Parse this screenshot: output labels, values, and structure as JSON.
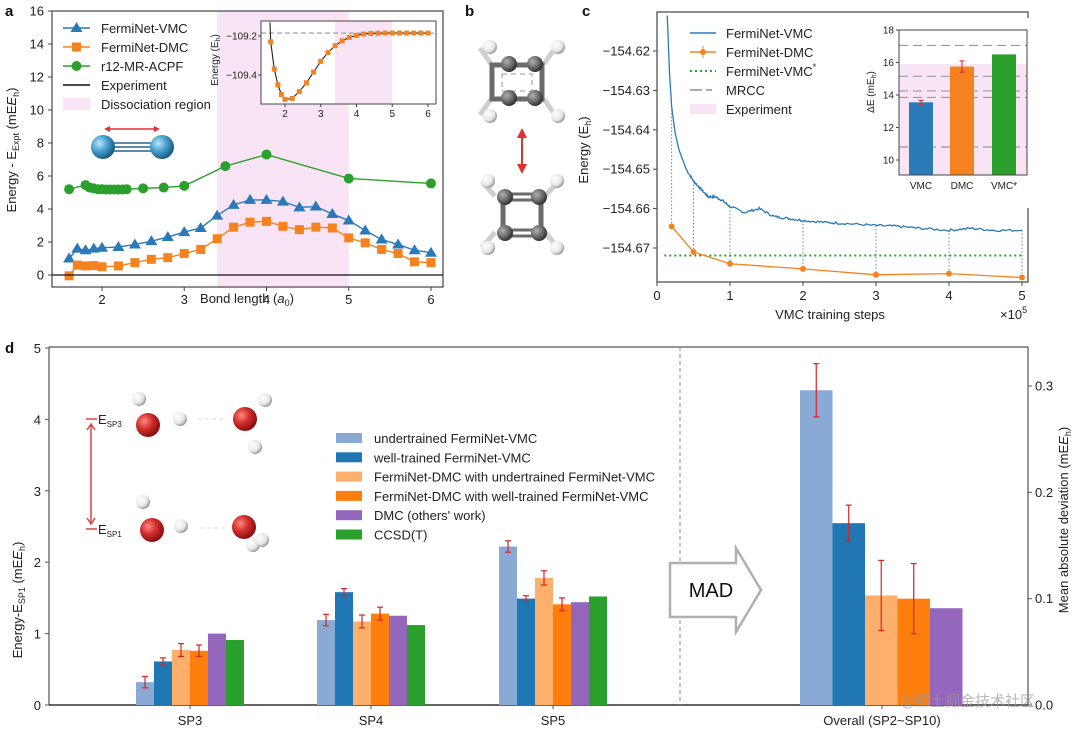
{
  "panels": {
    "a": "a",
    "b": "b",
    "c": "c",
    "d": "d"
  },
  "chart_data": [
    {
      "id": "a",
      "type": "line",
      "title": "",
      "xlabel": "Bond length (a0)",
      "ylabel": "Energy - E_Expt (mE_h)",
      "xlim": [
        1.5,
        6.15
      ],
      "ylim": [
        -0.5,
        16
      ],
      "xticks": [
        2,
        3,
        4,
        5,
        6
      ],
      "yticks": [
        0,
        2,
        4,
        6,
        8,
        10,
        12,
        14,
        16
      ],
      "shaded_region": {
        "label": "Dissociation region",
        "x": [
          3.4,
          5.0
        ],
        "color": "#f8e4f4"
      },
      "legend_position": "top-left",
      "series": [
        {
          "name": "FermiNet-VMC",
          "color": "#2a7ab8",
          "marker": "triangle",
          "x": [
            1.6,
            1.7,
            1.8,
            1.9,
            2.0,
            2.2,
            2.4,
            2.6,
            2.8,
            3.0,
            3.2,
            3.4,
            3.6,
            3.8,
            4.0,
            4.2,
            4.4,
            4.6,
            4.8,
            5.0,
            5.2,
            5.4,
            5.6,
            5.8,
            6.0
          ],
          "y": [
            1.0,
            1.6,
            1.5,
            1.6,
            1.65,
            1.7,
            1.85,
            2.05,
            2.3,
            2.6,
            2.85,
            3.6,
            4.25,
            4.55,
            4.55,
            4.45,
            4.1,
            4.15,
            3.7,
            3.3,
            2.7,
            2.15,
            1.85,
            1.5,
            1.35
          ]
        },
        {
          "name": "FermiNet-DMC",
          "color": "#f5821f",
          "marker": "square",
          "x": [
            1.6,
            1.7,
            1.8,
            1.9,
            2.0,
            2.2,
            2.4,
            2.6,
            2.8,
            3.0,
            3.2,
            3.4,
            3.6,
            3.8,
            4.0,
            4.2,
            4.4,
            4.6,
            4.8,
            5.0,
            5.2,
            5.4,
            5.6,
            5.8,
            6.0
          ],
          "y": [
            -0.05,
            0.6,
            0.55,
            0.57,
            0.5,
            0.55,
            0.75,
            0.95,
            1.05,
            1.3,
            1.55,
            2.2,
            2.9,
            3.2,
            3.25,
            2.95,
            2.75,
            2.9,
            2.85,
            2.25,
            1.95,
            1.55,
            1.3,
            0.8,
            0.75
          ]
        },
        {
          "name": "r12-MR-ACPF",
          "color": "#2ca02c",
          "marker": "circle",
          "x": [
            1.6,
            1.8,
            1.85,
            1.9,
            1.95,
            2.0,
            2.05,
            2.1,
            2.15,
            2.2,
            2.25,
            2.3,
            2.5,
            2.75,
            3.0,
            3.5,
            4.0,
            5.0,
            6.0
          ],
          "y": [
            5.2,
            5.45,
            5.3,
            5.25,
            5.2,
            5.2,
            5.18,
            5.18,
            5.18,
            5.18,
            5.18,
            5.2,
            5.25,
            5.3,
            5.4,
            6.6,
            7.3,
            5.85,
            5.55
          ]
        },
        {
          "name": "Experiment",
          "color": "#111111",
          "marker": "none",
          "x": [
            1.5,
            6.15
          ],
          "y": [
            0,
            0
          ]
        }
      ],
      "legend": [
        "FermiNet-VMC",
        "FermiNet-DMC",
        "r12-MR-ACPF",
        "Experiment",
        "Dissociation region"
      ],
      "inset": {
        "type": "line",
        "ylabel": "Energy (E_h)",
        "xticks": [
          2,
          3,
          4,
          5,
          6
        ],
        "yticks": [
          -109.2,
          -109.4
        ],
        "xlim": [
          1.45,
          6.15
        ],
        "ylim": [
          -109.54,
          -109.12
        ],
        "reference_line": -109.185,
        "shaded_region": [
          3.4,
          5.0
        ],
        "points_x": [
          1.6,
          1.7,
          1.8,
          1.9,
          2.0,
          2.2,
          2.4,
          2.6,
          2.8,
          3.0,
          3.2,
          3.4,
          3.6,
          3.8,
          4.0,
          4.2,
          4.4,
          4.6,
          4.8,
          5.0,
          5.2,
          5.4,
          5.6,
          5.8,
          6.0
        ],
        "points_y": [
          -109.23,
          -109.37,
          -109.45,
          -109.5,
          -109.525,
          -109.52,
          -109.485,
          -109.44,
          -109.385,
          -109.33,
          -109.285,
          -109.25,
          -109.225,
          -109.207,
          -109.197,
          -109.19,
          -109.187,
          -109.186,
          -109.185,
          -109.185,
          -109.185,
          -109.185,
          -109.185,
          -109.185,
          -109.185
        ]
      }
    },
    {
      "id": "c",
      "type": "line",
      "xlabel": "VMC training steps",
      "x_multiplier": "×10^5",
      "ylabel": "Energy (E_h)",
      "xlim": [
        0,
        5.1
      ],
      "ylim": [
        -154.6775,
        -154.6115
      ],
      "xticks": [
        0,
        1,
        2,
        3,
        4,
        5
      ],
      "yticks": [
        -154.62,
        -154.63,
        -154.64,
        -154.65,
        -154.66,
        -154.67
      ],
      "legend_position": "top-left",
      "series": [
        {
          "name": "FermiNet-VMC",
          "color": "#2a7ab8",
          "style": "solid",
          "x": [
            0.14,
            0.17,
            0.2,
            0.25,
            0.3,
            0.4,
            0.5,
            0.6,
            0.7,
            0.8,
            0.9,
            1.0,
            1.2,
            1.4,
            1.6,
            1.8,
            2.0,
            2.3,
            2.6,
            3.0,
            3.3,
            3.6,
            4.0,
            4.3,
            4.6,
            5.0
          ],
          "y": [
            -154.611,
            -154.625,
            -154.634,
            -154.641,
            -154.645,
            -154.65,
            -154.653,
            -154.655,
            -154.657,
            -154.657,
            -154.658,
            -154.6595,
            -154.661,
            -154.66,
            -154.662,
            -154.6625,
            -154.663,
            -154.6635,
            -154.6638,
            -154.6643,
            -154.6645,
            -154.665,
            -154.6655,
            -154.665,
            -154.6655,
            -154.6655
          ]
        },
        {
          "name": "FermiNet-DMC",
          "color": "#f5821f",
          "style": "line-errorbar",
          "x": [
            0.2,
            0.5,
            1.0,
            2.0,
            3.0,
            4.0,
            5.0
          ],
          "y": [
            -154.6645,
            -154.671,
            -154.674,
            -154.6753,
            -154.6768,
            -154.6765,
            -154.6775
          ]
        },
        {
          "name": "FermiNet-VMC*",
          "color": "#2ca02c",
          "style": "dotted",
          "y_const": -154.6719
        },
        {
          "name": "MRCC",
          "color": "#555555",
          "style": "dashdash"
        },
        {
          "name": "Experiment",
          "color": "#f8e4f4",
          "style": "patch"
        }
      ],
      "inset": {
        "type": "bar",
        "ylabel": "ΔE (mE_h)",
        "categories": [
          "VMC",
          "DMC",
          "VMC*"
        ],
        "values": [
          13.55,
          15.75,
          16.5
        ],
        "errors": [
          0.12,
          0.35,
          0
        ],
        "colors": [
          "#2a7ab8",
          "#f5821f",
          "#2ca02c"
        ],
        "ylim": [
          9,
          18
        ],
        "yticks": [
          10,
          12,
          14,
          16,
          18
        ],
        "mrcc_lines": [
          17.05,
          15.15,
          14.25,
          13.85,
          10.8
        ],
        "experiment_band": [
          9,
          15.9
        ]
      }
    },
    {
      "id": "d",
      "type": "bar",
      "ylabel": "Energy-E_SP1 (mE_h)",
      "ylabel_right": "Mean absolute deviation (mE_h)",
      "ylim": [
        0,
        5
      ],
      "yticks": [
        0,
        1,
        2,
        3,
        4,
        5
      ],
      "ylim_right": [
        0,
        0.33
      ],
      "yticks_right": [
        0.0,
        0.1,
        0.2,
        0.3
      ],
      "categories": [
        "SP3",
        "SP4",
        "SP5",
        "Overall (SP2~SP10)"
      ],
      "arrow_label": "MAD",
      "series": [
        {
          "name": "undertrained FermiNet-VMC",
          "color": "#8aaad6",
          "values": [
            0.32,
            1.19,
            2.22
          ],
          "errors": [
            0.08,
            0.08,
            0.08
          ],
          "mad": 0.296,
          "mad_err": 0.025
        },
        {
          "name": "well-trained FermiNet-VMC",
          "color": "#1f77b4",
          "values": [
            0.61,
            1.58,
            1.49
          ],
          "errors": [
            0.05,
            0.05,
            0.04
          ],
          "mad": 0.171,
          "mad_err": 0.017
        },
        {
          "name": "FermiNet-DMC with undertrained FermiNet-VMC",
          "color": "#fdaf6b",
          "values": [
            0.77,
            1.17,
            1.78
          ],
          "errors": [
            0.09,
            0.09,
            0.1
          ],
          "mad": 0.103,
          "mad_err": 0.033
        },
        {
          "name": "FermiNet-DMC with well-trained FermiNet-VMC",
          "color": "#ff7f0e",
          "values": [
            0.76,
            1.28,
            1.41
          ],
          "errors": [
            0.08,
            0.09,
            0.09
          ],
          "mad": 0.1,
          "mad_err": 0.033
        },
        {
          "name": "DMC (others' work)",
          "color": "#9467bd",
          "values": [
            1.0,
            1.25,
            1.44
          ],
          "errors": [
            0,
            0,
            0
          ],
          "mad": 0.091,
          "mad_err": 0
        },
        {
          "name": "CCSD(T)",
          "color": "#2ca02c",
          "values": [
            0.91,
            1.12,
            1.52
          ],
          "errors": [
            0,
            0,
            0
          ],
          "mad": null,
          "mad_err": 0
        }
      ],
      "annotations": {
        "upper_level": "E_SP3",
        "lower_level": "E_SP1"
      }
    }
  ],
  "labels": {
    "a_xlabel_main": "Bond length (",
    "a_xlabel_unit": "a",
    "a_xlabel_sub": "0",
    "a_ylabel": "Energy - E",
    "a_ylabel_sub": "Expt",
    "a_ylabel_unit": " (mE",
    "inset_a_ylabel": "Energy (E",
    "c_xlabel": "VMC training steps",
    "c_mult": "×10",
    "c_mult_exp": "5",
    "c_ylabel": "Energy (E",
    "c_inset_ylabel": "ΔE (mE",
    "d_ylabel": "Energy-E",
    "d_ylabel_sub": "SP1",
    "d_ylabel_unit": " (mE",
    "d_ylabel_right": "Mean absolute deviation (mE",
    "h_sub": "h",
    "esp3": "E",
    "esp3_sub": "SP3",
    "esp1": "E",
    "esp1_sub": "SP1",
    "mad": "MAD",
    "watermark": "@稀土掘金技术社区"
  }
}
